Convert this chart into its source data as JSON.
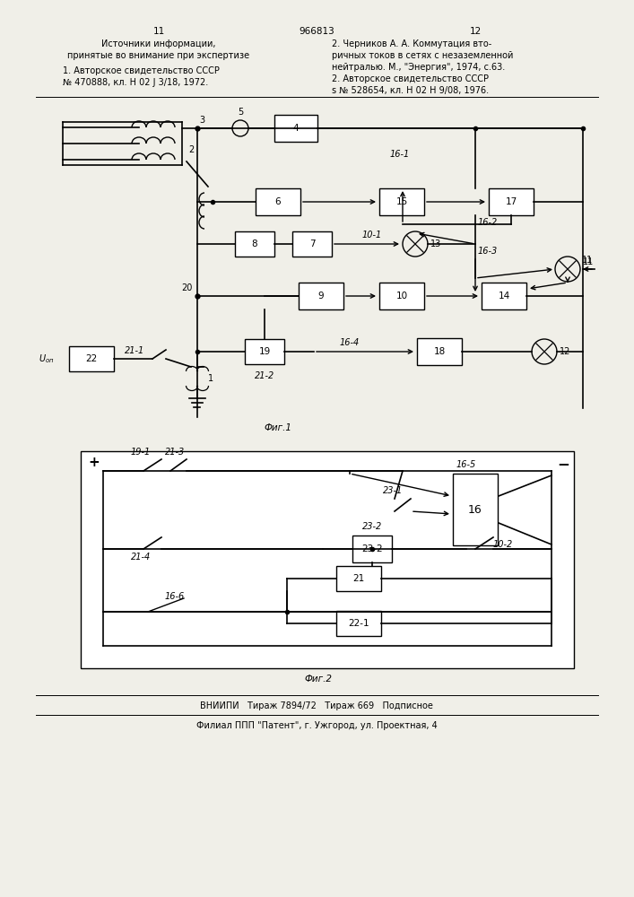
{
  "page_width": 7.07,
  "page_height": 10.0,
  "bg_color": "#f0efe8",
  "header_left_col": "11",
  "header_center": "966813",
  "header_right_col": "12",
  "text_left_1": "Источники информации,",
  "text_left_2": "принятые во внимание при экспертизе",
  "text_left_3": "1. Авторское свидетельство СССР",
  "text_left_4": "№ 470888, кл. Н 02 J 3/18, 1972.",
  "text_right_1": "2. Черников А. А. Коммутация вто-",
  "text_right_2": "ричных токов в сетях с незаземленной",
  "text_right_3": "нейтралью. М., \"Энергия\", 1974, с.63.",
  "text_right_4": "2. Авторское свидетельство СССР",
  "text_right_5": "s № 528654, кл. Н 02 Н 9/08, 1976.",
  "fig1_label": "Фиг.1",
  "fig2_label": "Фиг.2",
  "bottom_line1": "ВНИИПИ   Тираж 7894/72   Тираж 669   Подписное",
  "bottom_line2": "Филиал ППП \"Патент\", г. Ужгород, ул. Проектная, 4"
}
